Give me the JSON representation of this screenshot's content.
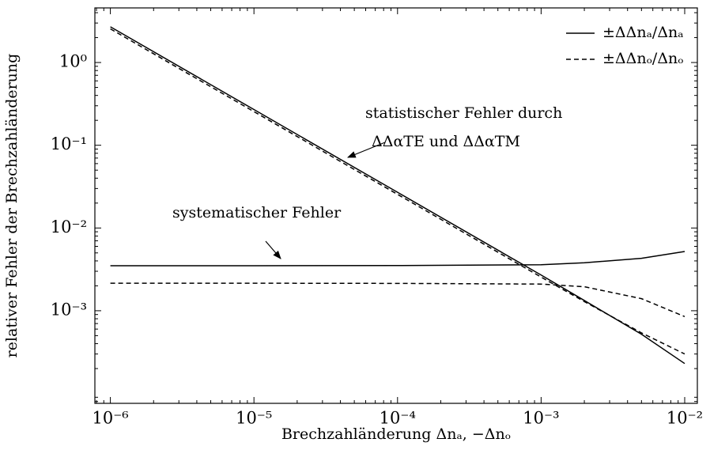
{
  "chart_data": {
    "type": "line",
    "x_label": "Brechzahländerung Δnₐ, −Δnₒ",
    "y_label": "relativer Fehler der Brechzahländerung",
    "log_x": true,
    "log_y": true,
    "legend": "upper right",
    "annotations": [
      "statistischer Fehler durch",
      "ΔΔαTE und ΔΔαTM",
      "systematischer Fehler"
    ],
    "x": [
      1e-06,
      1e-05,
      0.0001,
      0.001,
      0.002,
      0.005,
      0.01
    ],
    "series": [
      {
        "name": "±ΔΔnₐ/Δnₐ",
        "color": "#000000",
        "dash": false,
        "values": [
          2.7,
          0.27,
          0.027,
          0.0027,
          0.00133,
          0.00052,
          0.00023
        ]
      },
      {
        "name": "±ΔΔnₒ/Δnₒ",
        "color": "#000000",
        "dash": true,
        "values": [
          2.55,
          0.255,
          0.0255,
          0.00255,
          0.00129,
          0.00054,
          0.0003
        ]
      },
      {
        "color": "#000000",
        "dash": false,
        "values": [
          0.0035,
          0.0035,
          0.00352,
          0.0036,
          0.0038,
          0.0043,
          0.0052
        ]
      },
      {
        "color": "#000000",
        "dash": true,
        "values": [
          0.00215,
          0.00215,
          0.00214,
          0.0021,
          0.00195,
          0.0014,
          0.00085
        ]
      }
    ],
    "xlim": [
      7.8e-07,
      0.01225
    ],
    "ylim": [
      7.6e-05,
      4.57
    ],
    "xticks": [
      {
        "value": 1e-06,
        "label": "10⁻⁶"
      },
      {
        "value": 1e-05,
        "label": "10⁻⁵"
      },
      {
        "value": 0.0001,
        "label": "10⁻⁴"
      },
      {
        "value": 0.001,
        "label": "10⁻³"
      },
      {
        "value": 0.01,
        "label": "10⁻²"
      }
    ],
    "yticks": [
      {
        "value": 0.001,
        "label": "10⁻³"
      },
      {
        "value": 0.01,
        "label": "10⁻²"
      },
      {
        "value": 0.1,
        "label": "10⁻¹"
      },
      {
        "value": 1,
        "label": "10⁰"
      }
    ]
  }
}
